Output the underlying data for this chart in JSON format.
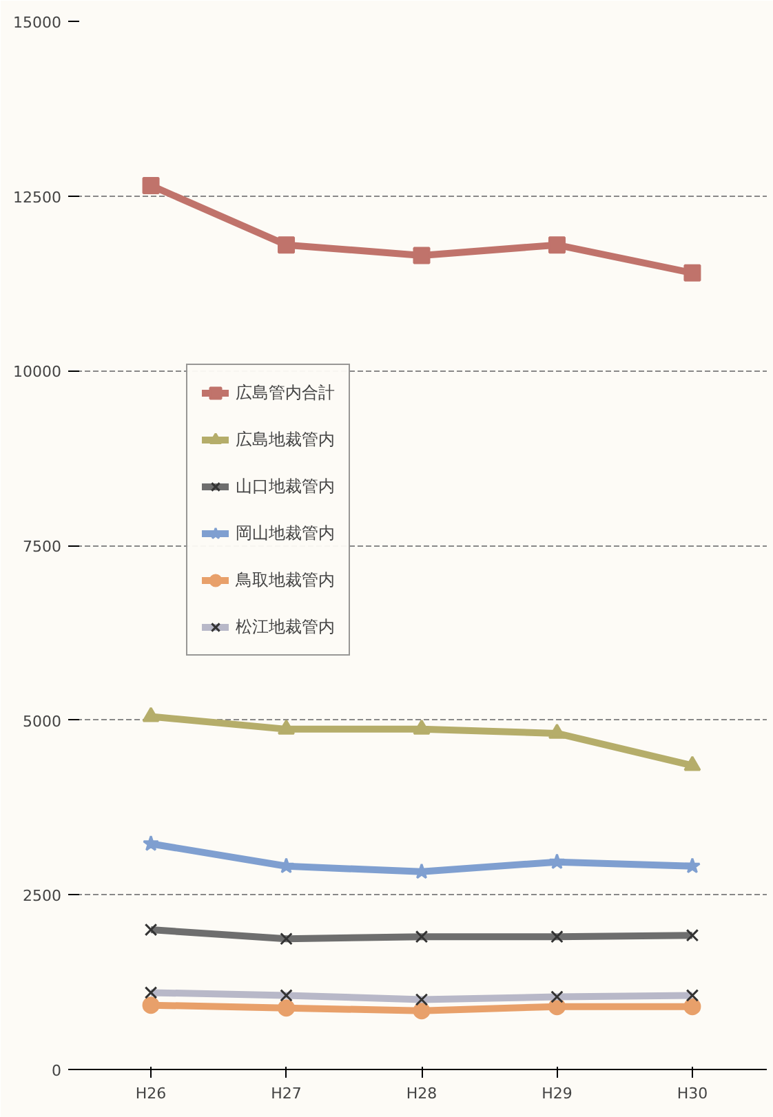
{
  "chart_data": {
    "type": "line",
    "categories": [
      "H26",
      "H27",
      "H28",
      "H29",
      "H30"
    ],
    "ylim": [
      0,
      15000
    ],
    "yticks": [
      0,
      2500,
      5000,
      7500,
      10000,
      12500,
      15000
    ],
    "grid": "y",
    "legend": "left",
    "series": [
      {
        "name": "広島管内合計",
        "color": "#c0736b",
        "marker": "square",
        "values": [
          12650,
          11800,
          11650,
          11800,
          11400
        ]
      },
      {
        "name": "広島地裁管内",
        "color": "#b5ad6a",
        "marker": "triangle",
        "values": [
          5050,
          4870,
          4870,
          4810,
          4350
        ]
      },
      {
        "name": "山口地裁管内",
        "color": "#6e6e6e",
        "marker": "cross",
        "values": [
          2000,
          1870,
          1900,
          1900,
          1920
        ]
      },
      {
        "name": "岡山地裁管内",
        "color": "#7f9fd0",
        "marker": "star",
        "values": [
          3230,
          2910,
          2830,
          2970,
          2910
        ]
      },
      {
        "name": "鳥取地裁管内",
        "color": "#e8a06a",
        "marker": "circle",
        "values": [
          920,
          880,
          840,
          900,
          900
        ]
      },
      {
        "name": "松江地裁管内",
        "color": "#b8b8c8",
        "marker": "cross",
        "values": [
          1100,
          1060,
          1000,
          1040,
          1060
        ]
      }
    ]
  }
}
